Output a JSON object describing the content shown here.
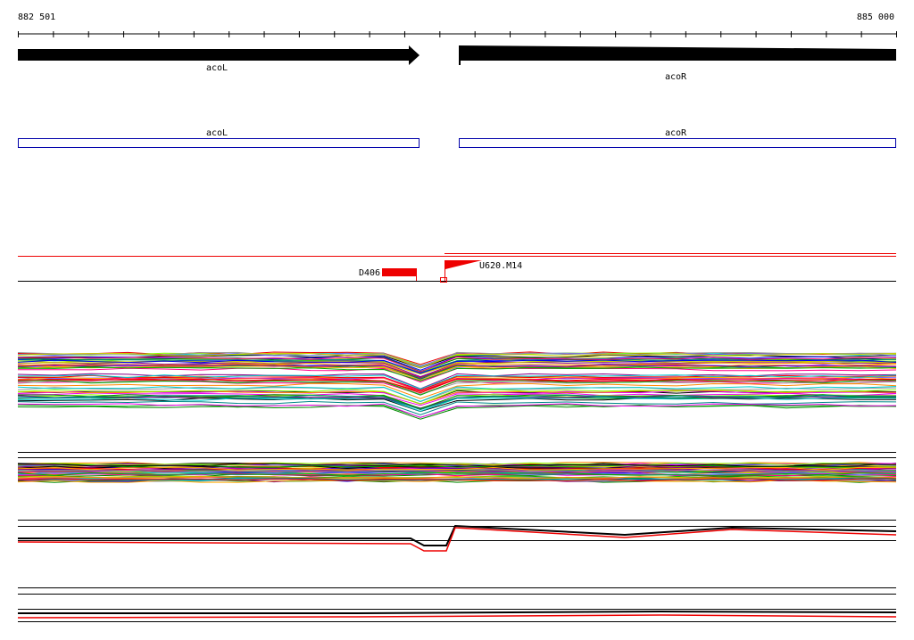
{
  "ruler": {
    "start": "882 501",
    "end": "885 000"
  },
  "genes": [
    {
      "label": "acoL"
    },
    {
      "label": "acoR"
    }
  ],
  "gene_boxes": [
    {
      "label": "acoL"
    },
    {
      "label": "acoR"
    }
  ],
  "features": [
    {
      "label": "D406"
    },
    {
      "label": "U620.M14"
    }
  ]
}
